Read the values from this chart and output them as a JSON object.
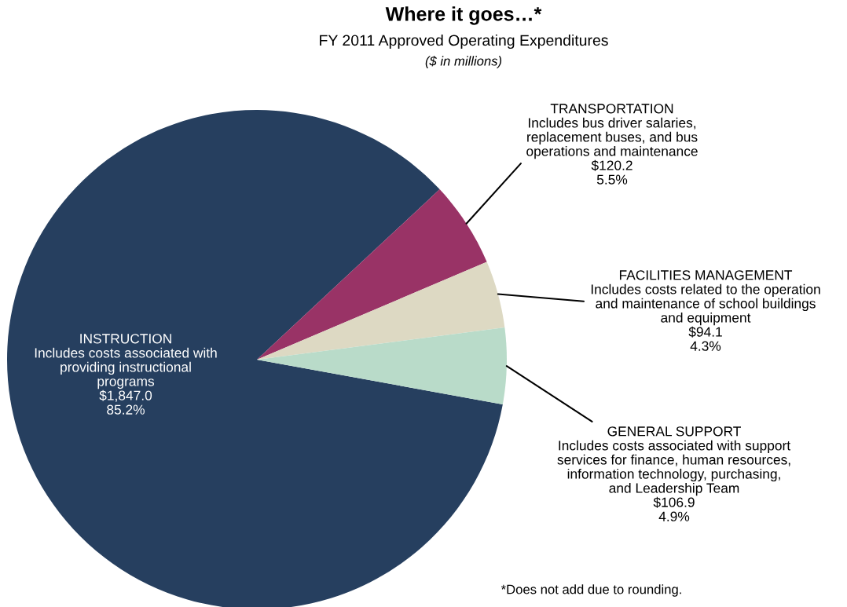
{
  "chart_data": {
    "type": "pie",
    "title": "Where it goes…*",
    "subtitle": "FY 2011 Approved Operating Expenditures",
    "categories": [
      "INSTRUCTION\nIncludes costs associated with\nproviding instructional\nprograms",
      "TRANSPORTATION\nIncludes bus driver salaries,\nreplacement buses, and bus\noperations and maintenance",
      "FACILITIES MANAGEMENT\nIncludes costs related to the operation\nand maintenance of school buildings\nand equipment",
      "GENERAL SUPPORT\nIncludes costs associated with support\nservices for finance, human resources,\ninformation technology, purchasing,\nand Leadership Team"
    ],
    "values": [
      1847.0,
      120.2,
      94.1,
      106.9
    ],
    "value_labels": [
      "$1,847.0\n85.2%",
      "$120.2\n5.5%",
      "$94.1\n4.3%",
      "$106.9\n4.9%"
    ],
    "colors": [
      "#263f5f",
      "#993366",
      "#ddd9c3",
      "#b9dbc9"
    ],
    "annotations": [
      "($ in millions)",
      "*Does not add due to rounding."
    ]
  }
}
